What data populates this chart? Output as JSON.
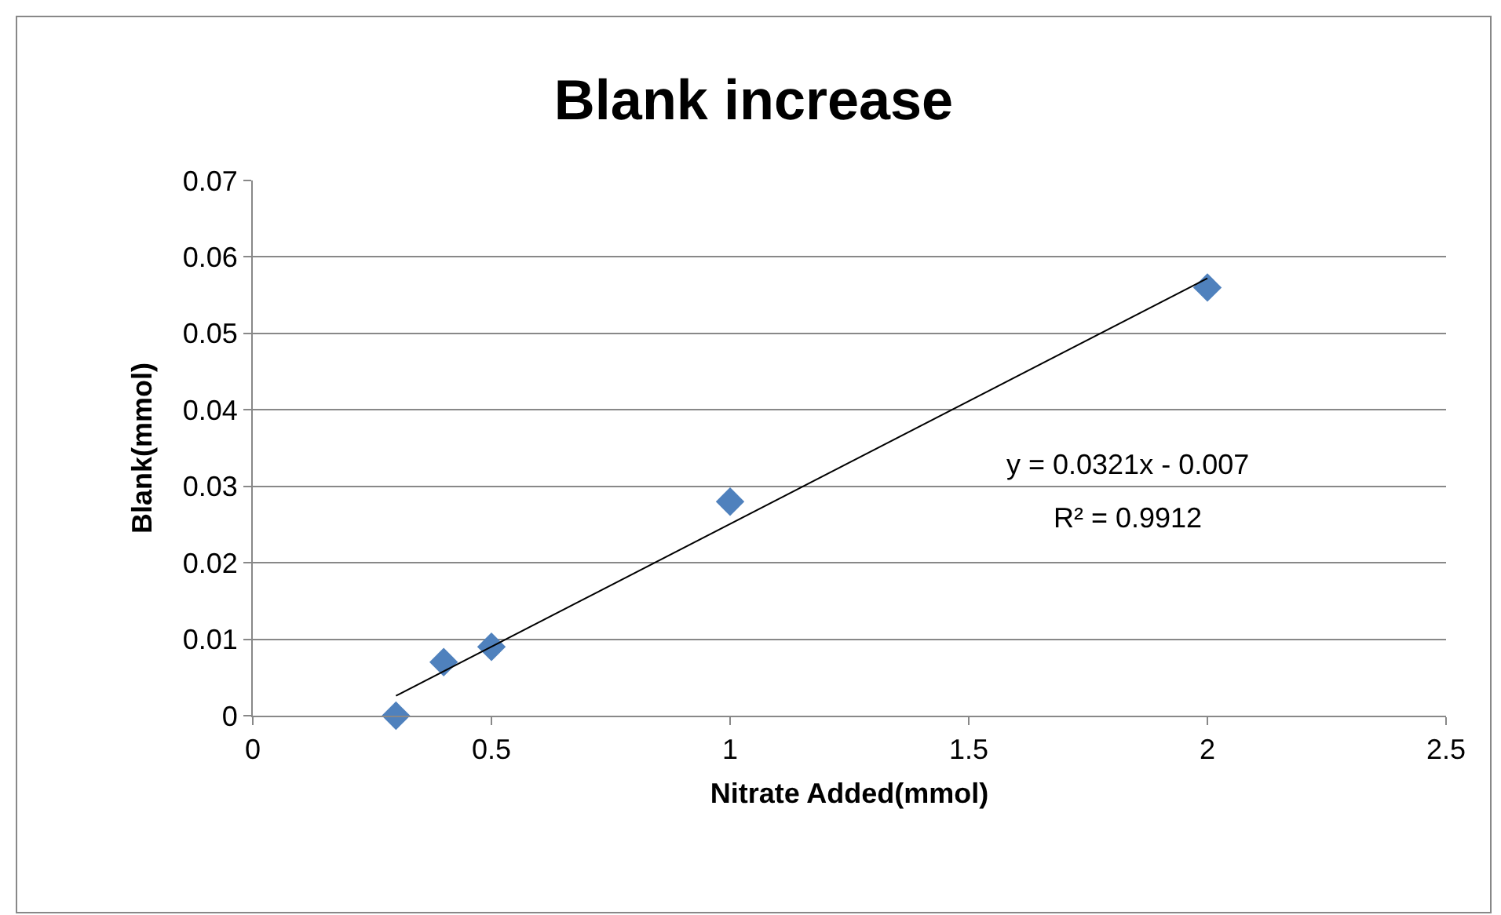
{
  "chart_data": {
    "type": "scatter",
    "title": "Blank increase",
    "xlabel": "Nitrate Added(mmol)",
    "ylabel": "Blank(mmol)",
    "x": [
      0.3,
      0.4,
      0.5,
      1,
      2
    ],
    "series": [
      {
        "color": "#4f81bd",
        "values": [
          0,
          0.007,
          0.009,
          0.028,
          0.056
        ],
        "marker": "diamond"
      },
      {
        "type": "line",
        "color": "#000000",
        "x": [
          0.3,
          2
        ],
        "values": [
          0.0026,
          0.0572
        ],
        "marker": "none",
        "line_style": "solid"
      }
    ],
    "annotations": [
      "y = 0.0321x - 0.007",
      "R² = 0.9912"
    ],
    "xlim": [
      0,
      2.5
    ],
    "xticks": [
      0,
      0.5,
      1,
      1.5,
      2,
      2.5
    ],
    "ylim": [
      0,
      0.07
    ],
    "yticks": [
      0,
      0.01,
      0.02,
      0.03,
      0.04,
      0.05,
      0.06,
      0.07
    ],
    "grid": "y"
  }
}
